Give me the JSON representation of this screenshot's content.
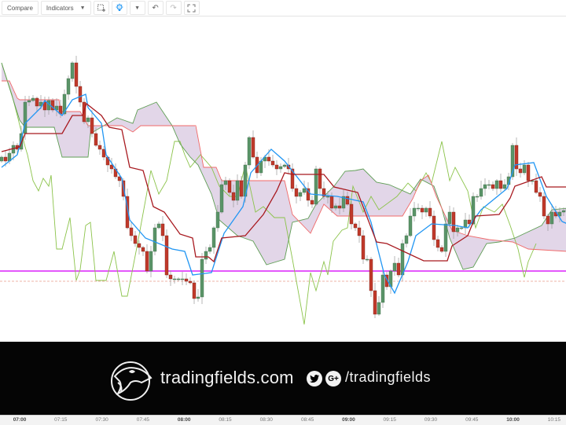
{
  "toolbar": {
    "compare_label": "Compare",
    "indicators_label": "Indicators",
    "icons": [
      "chevron-down-icon",
      "add-alert-icon",
      "lightbulb-icon",
      "chevron-down-icon",
      "undo-icon",
      "redo-icon",
      "fullscreen-icon"
    ]
  },
  "colors": {
    "bull": "#5a9468",
    "bear": "#c0392b",
    "tenkan": "#2196f3",
    "kijun": "#a8191f",
    "span_a": "#5f9e55",
    "span_b": "#f06a6a",
    "chikou": "#8bc34a",
    "cloud": "#d8c8e0",
    "support": "#e040fb",
    "dashed": "#e89a8a"
  },
  "chart_data": {
    "type": "candlestick",
    "x_range": [
      "06:53",
      "10:19"
    ],
    "x_ticks": [
      {
        "label": "07:00",
        "bold": true
      },
      {
        "label": "07:15",
        "bold": false
      },
      {
        "label": "07:30",
        "bold": false
      },
      {
        "label": "07:45",
        "bold": false
      },
      {
        "label": "08:00",
        "bold": true
      },
      {
        "label": "08:15",
        "bold": false
      },
      {
        "label": "08:30",
        "bold": false
      },
      {
        "label": "08:45",
        "bold": false
      },
      {
        "label": "09:00",
        "bold": true
      },
      {
        "label": "09:15",
        "bold": false
      },
      {
        "label": "09:30",
        "bold": false
      },
      {
        "label": "09:45",
        "bold": false
      },
      {
        "label": "10:00",
        "bold": true
      },
      {
        "label": "10:15",
        "bold": false
      }
    ],
    "closes": [
      240,
      235,
      245,
      255,
      250,
      270,
      310,
      312,
      315,
      305,
      310,
      300,
      312,
      300,
      305,
      295,
      320,
      340,
      360,
      330,
      310,
      285,
      290,
      270,
      255,
      250,
      240,
      230,
      225,
      215,
      210,
      190,
      150,
      140,
      130,
      125,
      120,
      95,
      120,
      150,
      155,
      140,
      90,
      85,
      85,
      85,
      85,
      82,
      80,
      60,
      62,
      110,
      120,
      125,
      150,
      170,
      205,
      210,
      195,
      185,
      210,
      190,
      230,
      265,
      240,
      220,
      235,
      240,
      235,
      230,
      225,
      228,
      230,
      225,
      200,
      190,
      195,
      200,
      185,
      180,
      225,
      200,
      190,
      190,
      175,
      178,
      175,
      190,
      180,
      155,
      150,
      140,
      110,
      110,
      70,
      40,
      55,
      90,
      75,
      95,
      105,
      90,
      130,
      140,
      165,
      175,
      175,
      170,
      175,
      165,
      135,
      125,
      120,
      155,
      170,
      145,
      150,
      150,
      160,
      155,
      190,
      190,
      200,
      205,
      205,
      200,
      210,
      200,
      205,
      215,
      255,
      225,
      220,
      230,
      210,
      210,
      195,
      190,
      165,
      155,
      170,
      165,
      170,
      172,
      175
    ],
    "lines": {
      "tenkan": [
        [
          0,
          227
        ],
        [
          4,
          243
        ],
        [
          6,
          283
        ],
        [
          10,
          303
        ],
        [
          11,
          312
        ],
        [
          15.4,
          293
        ],
        [
          18,
          313
        ],
        [
          21.4,
          320
        ],
        [
          22,
          303
        ],
        [
          25.4,
          283
        ],
        [
          26.6,
          243
        ],
        [
          30.6,
          213
        ],
        [
          32.6,
          160
        ],
        [
          36.6,
          137
        ],
        [
          43.4,
          123
        ],
        [
          46.6,
          120
        ],
        [
          48.6,
          90
        ],
        [
          53.4,
          93
        ],
        [
          56.6,
          143
        ],
        [
          61.4,
          177
        ],
        [
          63.4,
          220
        ],
        [
          68.6,
          250
        ],
        [
          72,
          235
        ],
        [
          78.6,
          193
        ],
        [
          85.4,
          190
        ],
        [
          92,
          183
        ],
        [
          94,
          157
        ],
        [
          97.4,
          90
        ],
        [
          100,
          67
        ],
        [
          103.4,
          107
        ],
        [
          105.4,
          140
        ],
        [
          109.4,
          155
        ],
        [
          115.4,
          153
        ],
        [
          118.6,
          150
        ],
        [
          122,
          173
        ],
        [
          128.6,
          200
        ],
        [
          130.6,
          230
        ],
        [
          135.4,
          233
        ],
        [
          138.6,
          190
        ],
        [
          142.6,
          158
        ],
        [
          144,
          155
        ]
      ],
      "kijun": [
        [
          0,
          247
        ],
        [
          4.6,
          253
        ],
        [
          6,
          270
        ],
        [
          15.4,
          270
        ],
        [
          18,
          293
        ],
        [
          20.6,
          293
        ],
        [
          21.6,
          308
        ],
        [
          25.4,
          293
        ],
        [
          27.4,
          278
        ],
        [
          30.6,
          275
        ],
        [
          32.6,
          227
        ],
        [
          36,
          223
        ],
        [
          38.6,
          177
        ],
        [
          41.4,
          170
        ],
        [
          45.4,
          142
        ],
        [
          48.6,
          137
        ],
        [
          49.4,
          113
        ],
        [
          52.6,
          113
        ],
        [
          54,
          107
        ],
        [
          56,
          137
        ],
        [
          62,
          140
        ],
        [
          66.6,
          167
        ],
        [
          70,
          197
        ],
        [
          72,
          220
        ],
        [
          74,
          218
        ],
        [
          82,
          218
        ],
        [
          84.6,
          202
        ],
        [
          90.6,
          195
        ],
        [
          95.4,
          132
        ],
        [
          98,
          130
        ],
        [
          107.4,
          108
        ],
        [
          113.4,
          108
        ],
        [
          114.6,
          127
        ],
        [
          118.6,
          140
        ],
        [
          120.6,
          165
        ],
        [
          126.6,
          167
        ],
        [
          129.4,
          188
        ],
        [
          130.6,
          203
        ],
        [
          137.4,
          215
        ],
        [
          138.6,
          202
        ],
        [
          144,
          202
        ]
      ],
      "span_a": [
        [
          0,
          360
        ],
        [
          4.6,
          287
        ],
        [
          6,
          278
        ],
        [
          13.4,
          278
        ],
        [
          15.4,
          240
        ],
        [
          22,
          240
        ],
        [
          22.6,
          270
        ],
        [
          29.4,
          290
        ],
        [
          33.4,
          283
        ],
        [
          34.6,
          300
        ],
        [
          39.4,
          310
        ],
        [
          43.4,
          280
        ],
        [
          45.4,
          257
        ],
        [
          48,
          240
        ],
        [
          50,
          230
        ],
        [
          53.4,
          193
        ],
        [
          55.4,
          160
        ],
        [
          60,
          140
        ],
        [
          64,
          133
        ],
        [
          67.4,
          103
        ],
        [
          72,
          110
        ],
        [
          74,
          157
        ],
        [
          78,
          162
        ],
        [
          80,
          180
        ],
        [
          84.6,
          203
        ],
        [
          87.4,
          222
        ],
        [
          90,
          223
        ],
        [
          92,
          225
        ],
        [
          95.4,
          208
        ],
        [
          98.6,
          205
        ],
        [
          104,
          193
        ],
        [
          106.6,
          212
        ],
        [
          110,
          203
        ],
        [
          112,
          175
        ],
        [
          114,
          137
        ],
        [
          117.4,
          97
        ],
        [
          120,
          100
        ],
        [
          123.4,
          130
        ],
        [
          126.6,
          132
        ],
        [
          130.6,
          137
        ],
        [
          137.4,
          153
        ],
        [
          140,
          173
        ],
        [
          144,
          175
        ]
      ],
      "span_b": [
        [
          0,
          337
        ],
        [
          2,
          337
        ],
        [
          4,
          315
        ],
        [
          4.6,
          313
        ],
        [
          14.6,
          313
        ],
        [
          15,
          298
        ],
        [
          20,
          298
        ],
        [
          22,
          280
        ],
        [
          30.6,
          280
        ],
        [
          33.4,
          272
        ],
        [
          35.4,
          280
        ],
        [
          49.4,
          280
        ],
        [
          51.4,
          227
        ],
        [
          54.6,
          227
        ],
        [
          56,
          210
        ],
        [
          72,
          210
        ],
        [
          74,
          167
        ],
        [
          78.6,
          143
        ],
        [
          82,
          180
        ],
        [
          85.4,
          165
        ],
        [
          102,
          165
        ],
        [
          104.6,
          187
        ],
        [
          106.6,
          210
        ],
        [
          108.6,
          217
        ],
        [
          110.6,
          190
        ],
        [
          114.6,
          147
        ],
        [
          118.6,
          140
        ],
        [
          124,
          135
        ],
        [
          130,
          132
        ],
        [
          134,
          123
        ],
        [
          144,
          120
        ]
      ],
      "chikou": [
        [
          0,
          360
        ],
        [
          2.6,
          320
        ],
        [
          4,
          293
        ],
        [
          6,
          253
        ],
        [
          6.6,
          243
        ],
        [
          8,
          210
        ],
        [
          9.4,
          197
        ],
        [
          10.6,
          213
        ],
        [
          12,
          203
        ],
        [
          12.6,
          217
        ],
        [
          14,
          123
        ],
        [
          15.4,
          123
        ],
        [
          17.4,
          163
        ],
        [
          19,
          83
        ],
        [
          20,
          97
        ],
        [
          21.4,
          153
        ],
        [
          22.6,
          157
        ],
        [
          24,
          83
        ],
        [
          26.6,
          83
        ],
        [
          28.6,
          120
        ],
        [
          30.6,
          63
        ],
        [
          32,
          63
        ],
        [
          34.6,
          130
        ],
        [
          38,
          223
        ],
        [
          40,
          193
        ],
        [
          42,
          210
        ],
        [
          44,
          260
        ],
        [
          45.4,
          260
        ],
        [
          46.6,
          243
        ],
        [
          48,
          227
        ],
        [
          50.6,
          243
        ],
        [
          53.4,
          227
        ],
        [
          55.4,
          203
        ],
        [
          58,
          190
        ],
        [
          60,
          190
        ],
        [
          62,
          230
        ],
        [
          64.6,
          170
        ],
        [
          66.6,
          177
        ],
        [
          69.4,
          163
        ],
        [
          72,
          163
        ],
        [
          74,
          110
        ],
        [
          77,
          27
        ],
        [
          78.6,
          93
        ],
        [
          80,
          70
        ],
        [
          82,
          107
        ],
        [
          83,
          90
        ],
        [
          84.4,
          133
        ],
        [
          86.6,
          147
        ],
        [
          88,
          150
        ],
        [
          89.4,
          203
        ],
        [
          92,
          170
        ],
        [
          94,
          190
        ],
        [
          96,
          173
        ],
        [
          100.6,
          190
        ],
        [
          103.4,
          207
        ],
        [
          105.4,
          197
        ],
        [
          108,
          220
        ],
        [
          109.4,
          207
        ],
        [
          112,
          260
        ],
        [
          114,
          210
        ],
        [
          115.4,
          227
        ],
        [
          118.6,
          197
        ],
        [
          120.6,
          150
        ],
        [
          122.6,
          177
        ],
        [
          125.4,
          170
        ],
        [
          127.4,
          180
        ],
        [
          129.4,
          153
        ],
        [
          131.4,
          123
        ],
        [
          133,
          87
        ],
        [
          134,
          107
        ],
        [
          136,
          130
        ]
      ]
    },
    "horizontal_lines": [
      {
        "level": 95,
        "style": "solid",
        "color_key": "support"
      },
      {
        "level": 82,
        "style": "dashed",
        "color_key": "dashed"
      }
    ],
    "grid": false
  },
  "banner": {
    "brand": "tradingfields.com",
    "handle": "/tradingfields",
    "social": [
      "twitter-icon",
      "google-plus-icon"
    ],
    "gplus_glyph": "G+",
    "logo_text": "tradingfields"
  }
}
